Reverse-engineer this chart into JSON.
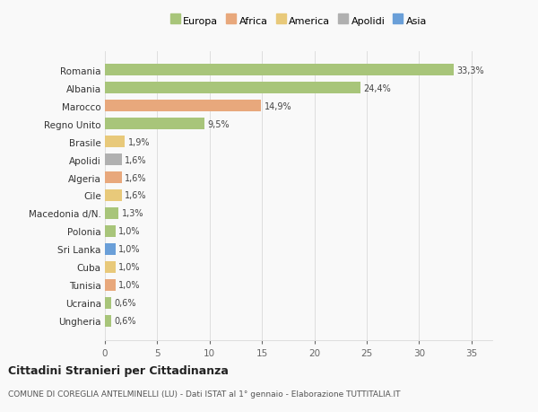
{
  "categories": [
    "Romania",
    "Albania",
    "Marocco",
    "Regno Unito",
    "Brasile",
    "Apolidi",
    "Algeria",
    "Cile",
    "Macedonia d/N.",
    "Polonia",
    "Sri Lanka",
    "Cuba",
    "Tunisia",
    "Ucraina",
    "Ungheria"
  ],
  "values": [
    33.3,
    24.4,
    14.9,
    9.5,
    1.9,
    1.6,
    1.6,
    1.6,
    1.3,
    1.0,
    1.0,
    1.0,
    1.0,
    0.6,
    0.6
  ],
  "labels": [
    "33,3%",
    "24,4%",
    "14,9%",
    "9,5%",
    "1,9%",
    "1,6%",
    "1,6%",
    "1,6%",
    "1,3%",
    "1,0%",
    "1,0%",
    "1,0%",
    "1,0%",
    "0,6%",
    "0,6%"
  ],
  "colors": [
    "#a8c57a",
    "#a8c57a",
    "#e8a87c",
    "#a8c57a",
    "#e8c97a",
    "#b0b0b0",
    "#e8a87c",
    "#e8c97a",
    "#a8c57a",
    "#a8c57a",
    "#6a9fd8",
    "#e8c97a",
    "#e8a87c",
    "#a8c57a",
    "#a8c57a"
  ],
  "legend_labels": [
    "Europa",
    "Africa",
    "America",
    "Apolidi",
    "Asia"
  ],
  "legend_colors": [
    "#a8c57a",
    "#e8a87c",
    "#e8c97a",
    "#b0b0b0",
    "#6a9fd8"
  ],
  "xlim": [
    0,
    37
  ],
  "xticks": [
    0,
    5,
    10,
    15,
    20,
    25,
    30,
    35
  ],
  "title": "Cittadini Stranieri per Cittadinanza",
  "subtitle": "COMUNE DI COREGLIA ANTELMINELLI (LU) - Dati ISTAT al 1° gennaio - Elaborazione TUTTITALIA.IT",
  "bg_color": "#f9f9f9",
  "grid_color": "#dedede"
}
